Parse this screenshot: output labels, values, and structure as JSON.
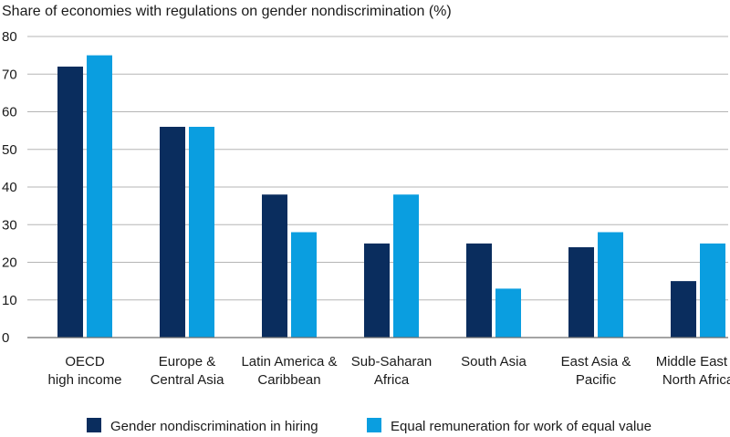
{
  "chart_data": {
    "type": "bar",
    "title": "Share of economies with regulations on gender nondiscrimination (%)",
    "categories": [
      [
        "OECD",
        "high income"
      ],
      [
        "Europe &",
        "Central Asia"
      ],
      [
        "Latin America &",
        "Caribbean"
      ],
      [
        "Sub-Saharan",
        "Africa"
      ],
      [
        "South Asia"
      ],
      [
        "East Asia &",
        "Pacific"
      ],
      [
        "Middle East &",
        "North Africa"
      ]
    ],
    "series": [
      {
        "name": "Gender nondiscrimination in hiring",
        "color": "#0a2d5e",
        "values": [
          72,
          56,
          38,
          25,
          25,
          24,
          15
        ]
      },
      {
        "name": "Equal remuneration for work of equal value",
        "color": "#0a9ee0",
        "values": [
          75,
          56,
          28,
          38,
          13,
          28,
          25
        ]
      }
    ],
    "yticks": [
      0,
      10,
      20,
      30,
      40,
      50,
      60,
      70,
      80
    ],
    "ylim": [
      0,
      80
    ],
    "grid": true,
    "legend_position": "bottom"
  }
}
